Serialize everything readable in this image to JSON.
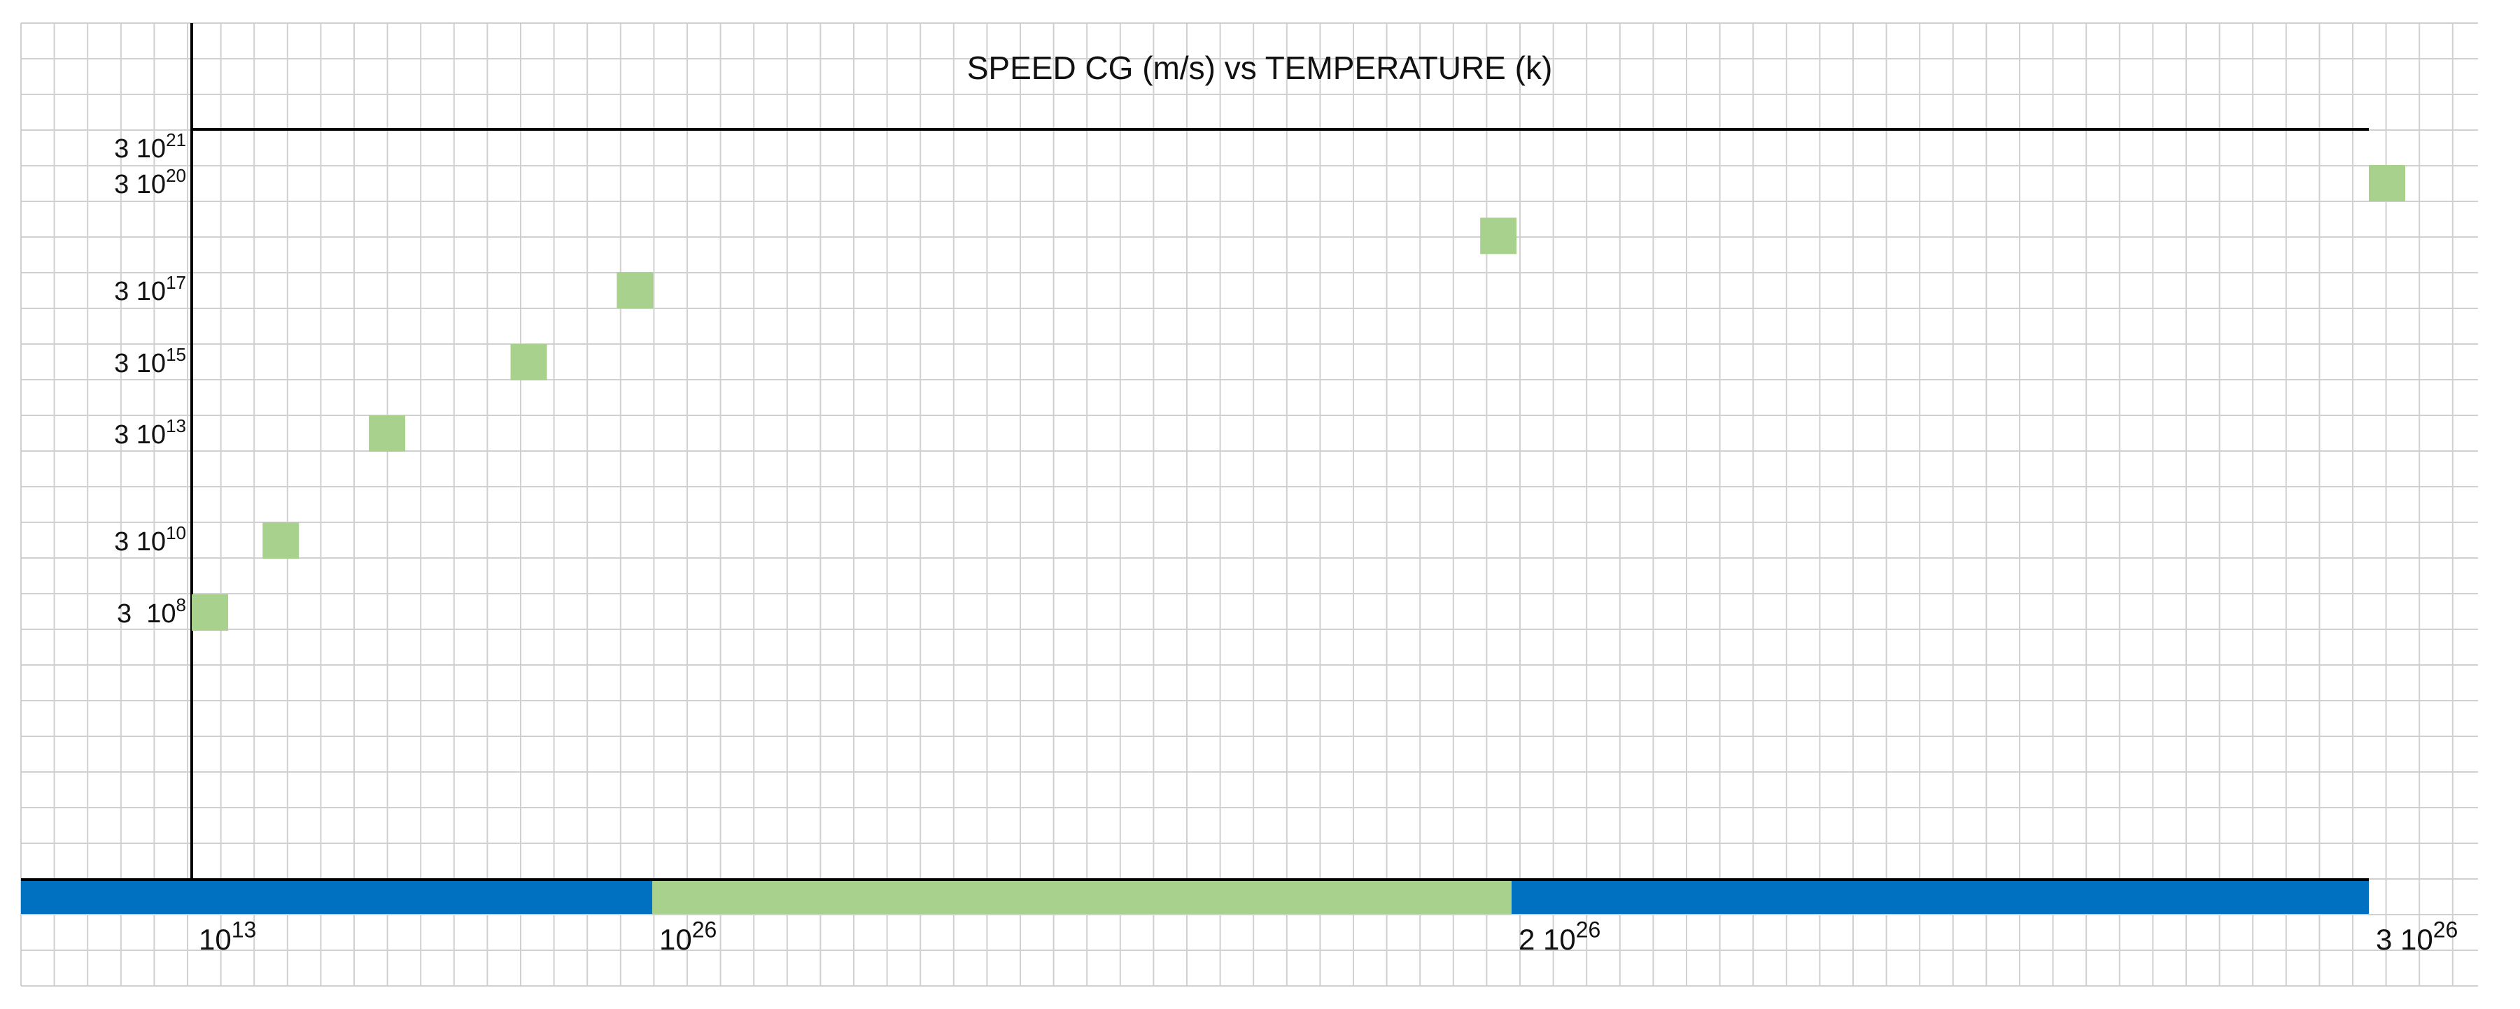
{
  "chart_data": {
    "type": "scatter",
    "title": "SPEED CG (m/s) vs TEMPERATURE (k)",
    "xlabel": "",
    "ylabel": "",
    "grid": true,
    "legend": "none",
    "x_scale": "nonlinear",
    "y_scale": "nonlinear",
    "x_ticks": [
      {
        "mantissa": "",
        "exponent": "13",
        "value": 10000000000000.0
      },
      {
        "mantissa": "",
        "exponent": "26",
        "value": 1e+26
      },
      {
        "mantissa": "2 ",
        "exponent": "26",
        "value": 2e+26
      },
      {
        "mantissa": "3 ",
        "exponent": "26",
        "value": 3e+26
      }
    ],
    "y_ticks": [
      {
        "mantissa": "3  ",
        "exponent": "8",
        "value": 300000000.0
      },
      {
        "mantissa": "3 ",
        "exponent": "10",
        "value": 30000000000.0
      },
      {
        "mantissa": "3 ",
        "exponent": "13",
        "value": 30000000000000.0
      },
      {
        "mantissa": "3 ",
        "exponent": "15",
        "value": 3000000000000000.0
      },
      {
        "mantissa": "3 ",
        "exponent": "17",
        "value": 3e+17
      },
      {
        "mantissa": "3 ",
        "exponent": "20",
        "value": 3e+20
      },
      {
        "mantissa": "3 ",
        "exponent": "21",
        "value": 3e+21
      }
    ],
    "points": [
      {
        "x": 10000000000000.0,
        "y": 300000000.0
      },
      {
        "x": 1000000000000000.0,
        "y": 30000000000.0
      },
      {
        "x": 1e+18,
        "y": 30000000000000.0
      },
      {
        "x": 1e+22,
        "y": 3000000000000000.0
      },
      {
        "x": 1e+25,
        "y": 3e+17
      },
      {
        "x": 1.95e+26,
        "y": 1e+19
      },
      {
        "x": 3e+26,
        "y": 3e+20
      }
    ],
    "x_bands": [
      {
        "from": 10000000000000.0,
        "to": 1e+26,
        "color": "#0070C0"
      },
      {
        "from": 1e+26,
        "to": 2e+26,
        "color": "#A9D18E"
      },
      {
        "from": 2e+26,
        "to": 3e+26,
        "color": "#0070C0"
      }
    ],
    "colors": {
      "point": "#A9D18E",
      "grid": "#D0D0D0",
      "axis": "#000000"
    }
  }
}
